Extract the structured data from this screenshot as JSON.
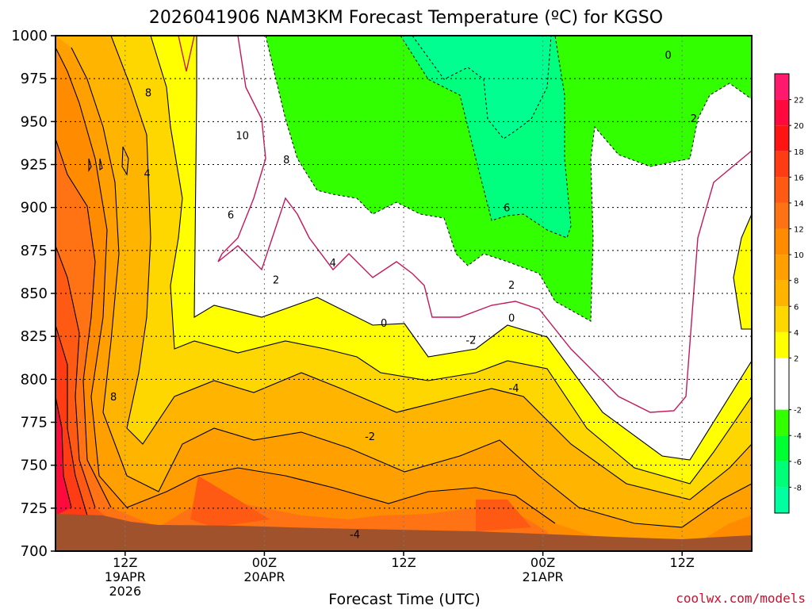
{
  "chart_data": {
    "type": "heatmap",
    "title": "2026041906 NAM3KM Forecast Temperature (ºC) for KGSO",
    "xlabel": "Forecast Time (UTC)",
    "ylabel": "",
    "credit": "coolwx.com/models",
    "y_axis": {
      "unit": "hPa",
      "range": [
        1000,
        700
      ],
      "ticks": [
        "700",
        "725",
        "750",
        "775",
        "800",
        "825",
        "850",
        "875",
        "900",
        "925",
        "950",
        "975",
        "1000"
      ]
    },
    "x_axis": {
      "range_hours": [
        0,
        60
      ],
      "ticks": [
        {
          "hour": 6,
          "line1": "12Z",
          "line2": "19APR",
          "line3": "2026"
        },
        {
          "hour": 18,
          "line1": "00Z",
          "line2": "20APR",
          "line3": ""
        },
        {
          "hour": 30,
          "line1": "12Z",
          "line2": "",
          "line3": ""
        },
        {
          "hour": 42,
          "line1": "00Z",
          "line2": "21APR",
          "line3": ""
        },
        {
          "hour": 54,
          "line1": "12Z",
          "line2": "",
          "line3": ""
        }
      ]
    },
    "colorbar": {
      "ticks": [
        "22",
        "20",
        "18",
        "16",
        "14",
        "12",
        "10",
        "8",
        "6",
        "4",
        "2",
        "-2",
        "-4",
        "-6",
        "-8"
      ],
      "bins": [
        {
          "from": 22,
          "to": 24,
          "color": "#ff1a6e"
        },
        {
          "from": 20,
          "to": 22,
          "color": "#ff0a3c"
        },
        {
          "from": 18,
          "to": 20,
          "color": "#ff1414"
        },
        {
          "from": 16,
          "to": 18,
          "color": "#ff3c14"
        },
        {
          "from": 14,
          "to": 16,
          "color": "#ff5a14"
        },
        {
          "from": 12,
          "to": 14,
          "color": "#ff7314"
        },
        {
          "from": 10,
          "to": 12,
          "color": "#ff8c00"
        },
        {
          "from": 8,
          "to": 10,
          "color": "#ffa000"
        },
        {
          "from": 6,
          "to": 8,
          "color": "#ffb400"
        },
        {
          "from": 4,
          "to": 6,
          "color": "#ffd700"
        },
        {
          "from": 2,
          "to": 4,
          "color": "#ffff00"
        },
        {
          "from": -2,
          "to": 2,
          "color": "#ffffff"
        },
        {
          "from": -4,
          "to": -2,
          "color": "#32ff00"
        },
        {
          "from": -6,
          "to": -4,
          "color": "#00ff32"
        },
        {
          "from": -8,
          "to": -6,
          "color": "#00ff78"
        },
        {
          "from": -10,
          "to": -8,
          "color": "#00ffa0"
        }
      ]
    },
    "contour_labels": [
      {
        "text": "-4",
        "hour": 25.8,
        "hPa": 710
      },
      {
        "text": "-2",
        "hour": 27.1,
        "hPa": 767
      },
      {
        "text": "8",
        "hour": 5.0,
        "hPa": 790
      },
      {
        "text": "0",
        "hour": 28.3,
        "hPa": 833
      },
      {
        "text": "-4",
        "hour": 39.5,
        "hPa": 795
      },
      {
        "text": "-2",
        "hour": 35.8,
        "hPa": 823
      },
      {
        "text": "0",
        "hour": 39.3,
        "hPa": 836
      },
      {
        "text": "2",
        "hour": 19.0,
        "hPa": 858
      },
      {
        "text": "2",
        "hour": 39.3,
        "hPa": 855
      },
      {
        "text": "4",
        "hour": 23.9,
        "hPa": 868
      },
      {
        "text": "6",
        "hour": 15.1,
        "hPa": 896
      },
      {
        "text": "6",
        "hour": 38.9,
        "hPa": 900
      },
      {
        "text": "4",
        "hour": 7.9,
        "hPa": 920
      },
      {
        "text": "8",
        "hour": 19.9,
        "hPa": 928
      },
      {
        "text": "10",
        "hour": 16.1,
        "hPa": 942
      },
      {
        "text": "8",
        "hour": 8.0,
        "hPa": 967
      },
      {
        "text": "2",
        "hour": 55.0,
        "hPa": 952
      },
      {
        "text": "0",
        "hour": 52.8,
        "hPa": 989
      }
    ],
    "fields": {
      "ground_color": "#a0522d",
      "freezing_line_color": "#c2185b",
      "grid": true,
      "legend": "right colorbar"
    }
  }
}
